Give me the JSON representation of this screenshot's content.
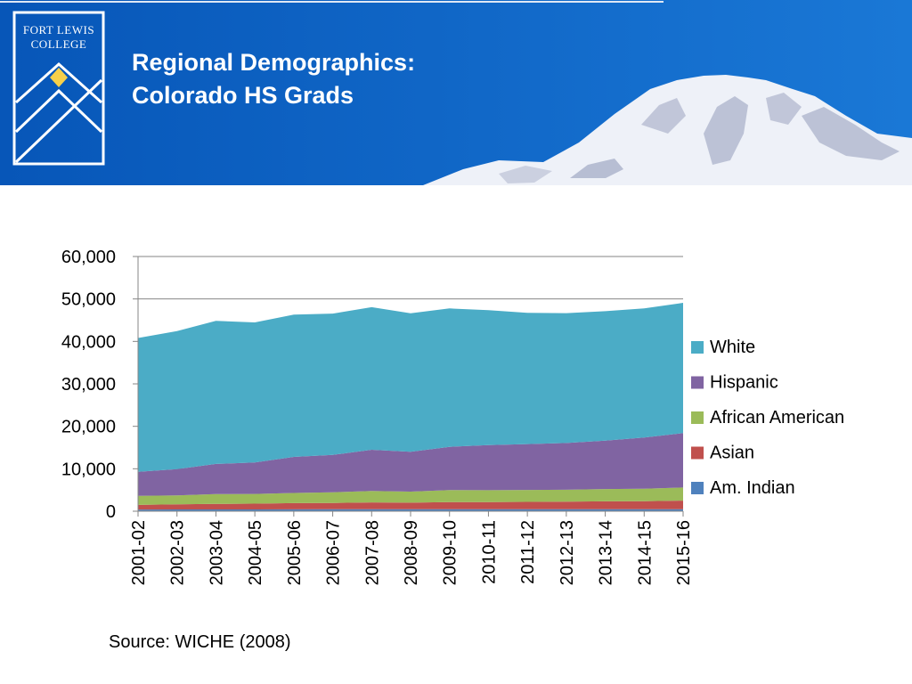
{
  "slide": {
    "title_line1": "Regional Demographics:",
    "title_line2": "Colorado HS Grads",
    "source": "Source:  WICHE (2008)"
  },
  "logo": {
    "line1": "Fort Lewis",
    "line2": "College",
    "colors": {
      "band": "#0a66c6",
      "gold": "#f7d04a",
      "line": "#ffffff"
    }
  },
  "colors": {
    "banner_dark": "#0756b8",
    "banner_light": "#1a78d6",
    "snow": "#eef1f8",
    "rock": "#8a93b4",
    "axis": "#868686",
    "grid": "#868686"
  },
  "chart_data": {
    "type": "area",
    "stacked": true,
    "categories": [
      "2001-02",
      "2002-03",
      "2003-04",
      "2004-05",
      "2005-06",
      "2006-07",
      "2007-08",
      "2008-09",
      "2009-10",
      "2010-11",
      "2011-12",
      "2012-13",
      "2013-14",
      "2014-15",
      "2015-16"
    ],
    "series": [
      {
        "name": "Am. Indian",
        "color": "#4f81bd",
        "values": [
          400,
          420,
          430,
          430,
          450,
          460,
          470,
          460,
          470,
          460,
          460,
          460,
          470,
          480,
          490
        ]
      },
      {
        "name": "Asian",
        "color": "#c0504d",
        "values": [
          1100,
          1200,
          1300,
          1350,
          1450,
          1500,
          1600,
          1550,
          1700,
          1700,
          1750,
          1800,
          1850,
          1900,
          2000
        ]
      },
      {
        "name": "African American",
        "color": "#9bbb59",
        "values": [
          2100,
          2100,
          2300,
          2300,
          2400,
          2500,
          2700,
          2600,
          2800,
          2800,
          2800,
          2800,
          2900,
          2900,
          3100
        ]
      },
      {
        "name": "Hispanic",
        "color": "#8064a2",
        "values": [
          5700,
          6200,
          7100,
          7400,
          8500,
          8800,
          9700,
          9400,
          10200,
          10600,
          10800,
          11000,
          11400,
          12100,
          12800
        ]
      },
      {
        "name": "White",
        "color": "#4bacc6",
        "values": [
          31500,
          32500,
          33700,
          33000,
          33500,
          33300,
          33600,
          32600,
          32600,
          31800,
          30900,
          30600,
          30500,
          30400,
          30700
        ]
      }
    ],
    "ylim": [
      0,
      60000
    ],
    "yticks": [
      "0",
      "10,000",
      "20,000",
      "30,000",
      "40,000",
      "50,000",
      "60,000"
    ],
    "ytick_values": [
      0,
      10000,
      20000,
      30000,
      40000,
      50000,
      60000
    ],
    "grid": true,
    "legend_position": "right"
  }
}
